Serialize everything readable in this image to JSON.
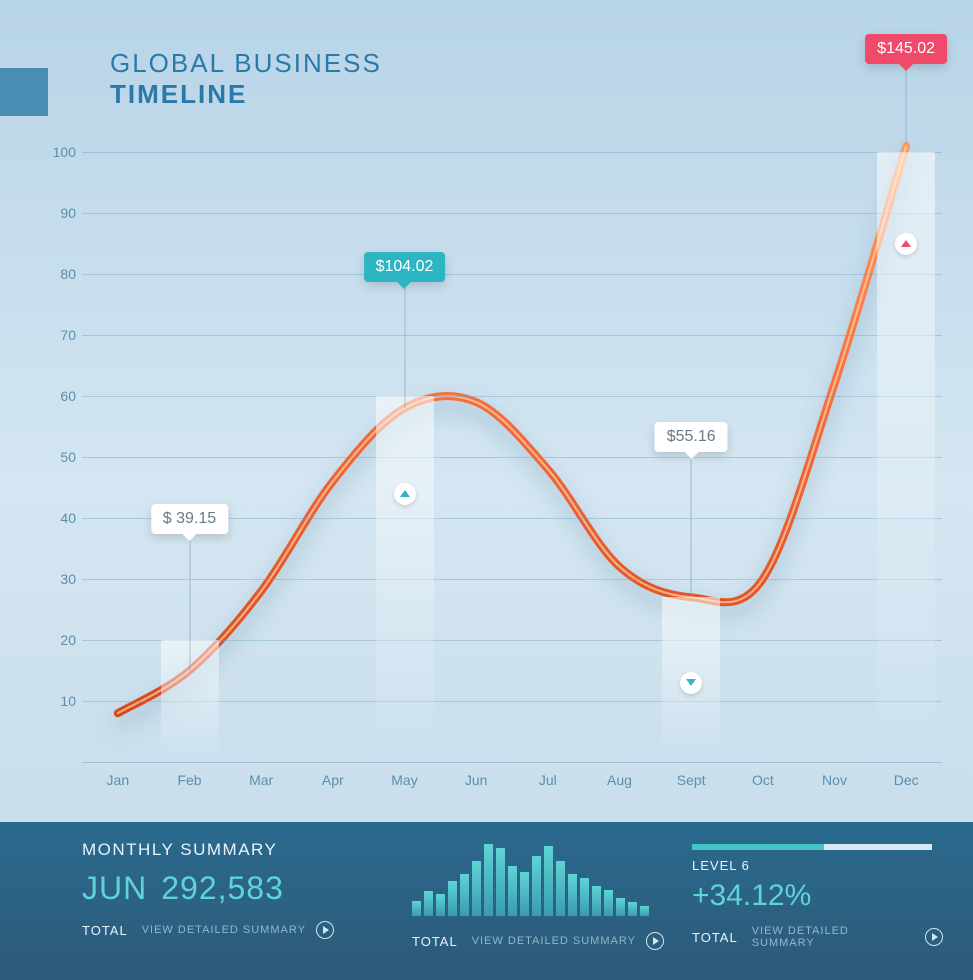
{
  "title": {
    "line1": "GLOBAL BUSINESS",
    "line2": "TIMELINE"
  },
  "chart": {
    "type": "line-with-bars",
    "background_gradient": [
      "#b8d4e8",
      "#d4e6f1",
      "#c4dae8"
    ],
    "grid_color": "rgba(110,160,190,0.4)",
    "axis_label_color": "#5a8fad",
    "axis_label_fontsize": 14,
    "ylim": [
      0,
      100
    ],
    "yticks": [
      10,
      20,
      30,
      40,
      50,
      60,
      70,
      80,
      90,
      100
    ],
    "months": [
      "Jan",
      "Feb",
      "Mar",
      "Apr",
      "May",
      "Jun",
      "Jul",
      "Aug",
      "Sept",
      "Oct",
      "Nov",
      "Dec"
    ],
    "curve_values": [
      8,
      15,
      28,
      46,
      58,
      59,
      48,
      32,
      27,
      30,
      62,
      101
    ],
    "line_color": "#f26a3b",
    "line_highlight": "#ff9a5c",
    "line_width": 8,
    "bars": [
      {
        "month_index": 1,
        "height_pct": 20
      },
      {
        "month_index": 4,
        "height_pct": 60
      },
      {
        "month_index": 8,
        "height_pct": 27
      },
      {
        "month_index": 11,
        "height_pct": 100
      }
    ],
    "tooltips": [
      {
        "month_index": 1,
        "label": "$ 39.15",
        "bg": "#ffffff",
        "fg": "#6a7a85",
        "top_offset": 352
      },
      {
        "month_index": 4,
        "label": "$104.02",
        "bg": "#2db5c4",
        "fg": "#ffffff",
        "top_offset": 100
      },
      {
        "month_index": 8,
        "label": "$55.16",
        "bg": "#ffffff",
        "fg": "#6a7a85",
        "top_offset": 270
      },
      {
        "month_index": 11,
        "label": "$145.02",
        "bg": "#ef4a6a",
        "fg": "#ffffff",
        "top_offset": -118
      }
    ],
    "markers": [
      {
        "month_index": 4,
        "y_value": 44,
        "direction": "up",
        "color": "#2db5c4"
      },
      {
        "month_index": 8,
        "y_value": 13,
        "direction": "down",
        "color": "#3bb3c3"
      },
      {
        "month_index": 11,
        "y_value": 85,
        "direction": "up",
        "color": "#ef4a6a"
      }
    ]
  },
  "footer": {
    "bg_gradient": [
      "#2a6a8f",
      "#2d5a78"
    ],
    "accent_color": "#5fd4d4",
    "summary_title": "MONTHLY SUMMARY",
    "big_month": "JUN",
    "big_value": "292,583",
    "total_label": "TOTAL",
    "view_label": "VIEW DETAILED SUMMARY",
    "mini_bars": [
      15,
      25,
      22,
      35,
      42,
      55,
      72,
      68,
      50,
      44,
      60,
      70,
      55,
      42,
      38,
      30,
      26,
      18,
      14,
      10
    ],
    "progress": {
      "pct": 55,
      "level_label": "LEVEL 6"
    },
    "change_pct": "+34.12%"
  }
}
